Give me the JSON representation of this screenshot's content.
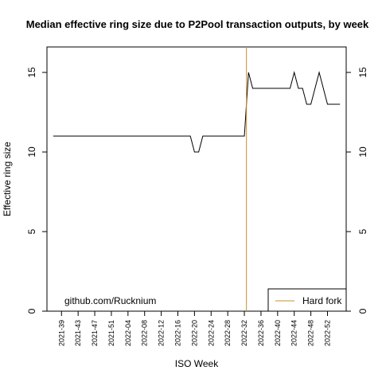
{
  "chart_data": {
    "type": "line",
    "title": "Median effective ring size due to P2Pool transaction outputs, by week",
    "xlabel": "ISO Week",
    "ylabel": "Effective ring size",
    "ylim": [
      0,
      16.6
    ],
    "yticks": [
      0,
      5,
      10,
      15
    ],
    "ytick_labels": [
      "0",
      "5",
      "10",
      "15"
    ],
    "x_tick_labels": [
      "2021-39",
      "2021-43",
      "2021-47",
      "2021-51",
      "2022-04",
      "2022-08",
      "2022-12",
      "2022-16",
      "2022-20",
      "2022-24",
      "2022-28",
      "2022-32",
      "2022-36",
      "2022-40",
      "2022-44",
      "2022-48",
      "2022-52"
    ],
    "x_tick_weeks": [
      2,
      6,
      10,
      14,
      18,
      22,
      26,
      30,
      34,
      38,
      42,
      46,
      50,
      54,
      58,
      62,
      66
    ],
    "x_range": [
      -1.5,
      70.5
    ],
    "series": [
      {
        "weeks": [
          0,
          33,
          34,
          35,
          36,
          46,
          47,
          48,
          57,
          58,
          59,
          60,
          61,
          62,
          63,
          64,
          65,
          66,
          67,
          68,
          69
        ],
        "values": [
          11,
          11,
          10,
          10,
          11,
          11,
          15,
          14,
          14,
          15,
          14,
          14,
          13,
          13,
          14,
          15,
          14,
          13,
          13,
          13,
          13
        ],
        "color": "#000000"
      }
    ],
    "vline": {
      "week": 46.5,
      "color": "#c8902a"
    },
    "legend": {
      "position": "bottom-right",
      "label": "Hard fork"
    },
    "grid": false
  },
  "annotation": "github.com/Rucknium"
}
